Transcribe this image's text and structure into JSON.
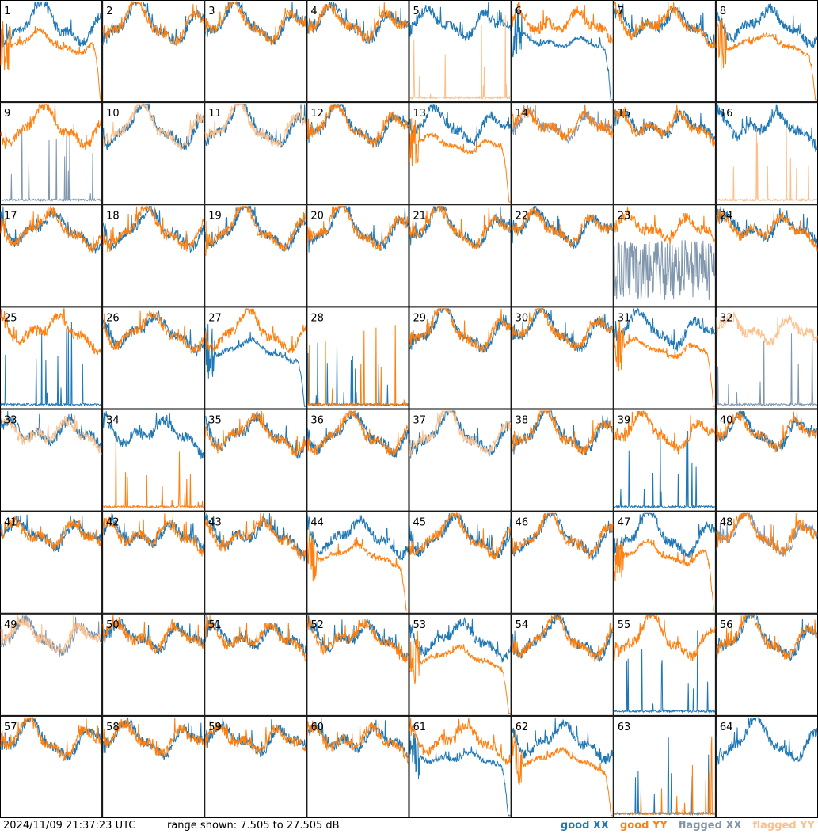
{
  "timestamp": "2024/11/09 21:37:23 UTC",
  "range_label": "range shown: 7.505 to 27.505 dB",
  "legend": [
    {
      "label": "good XX",
      "color": "#1f77b4"
    },
    {
      "label": "good YY",
      "color": "#ff7f0e"
    },
    {
      "label": "flagged XX",
      "color": "#7f96ad"
    },
    {
      "label": "flagged YY",
      "color": "#ffbf8a"
    }
  ],
  "chart_data": {
    "type": "line",
    "title": "",
    "xlabel": "",
    "ylabel": "",
    "ylim": [
      7.505,
      27.505
    ],
    "grid": {
      "rows": 8,
      "cols": 8
    },
    "panels": [
      {
        "n": 1,
        "xx": "good",
        "yy": "good",
        "yy_shape": "droop_end"
      },
      {
        "n": 2,
        "xx": "good",
        "yy": "good"
      },
      {
        "n": 3,
        "xx": "good",
        "yy": "good"
      },
      {
        "n": 4,
        "xx": "good",
        "yy": "good"
      },
      {
        "n": 5,
        "xx": "good",
        "yy": "flagged",
        "yy_shape": "spikes"
      },
      {
        "n": 6,
        "xx": "good",
        "yy": "good",
        "xx_shape": "droop_end"
      },
      {
        "n": 7,
        "xx": "good",
        "yy": "good"
      },
      {
        "n": 8,
        "xx": "good",
        "yy": "good",
        "yy_shape": "droop_end"
      },
      {
        "n": 9,
        "xx": "flagged",
        "yy": "good",
        "xx_shape": "spikes"
      },
      {
        "n": 10,
        "xx": "good",
        "yy": "flagged"
      },
      {
        "n": 11,
        "xx": "good",
        "yy": "flagged"
      },
      {
        "n": 12,
        "xx": "good",
        "yy": "good"
      },
      {
        "n": 13,
        "xx": "good",
        "yy": "good",
        "yy_shape": "droop_end"
      },
      {
        "n": 14,
        "xx": "flagged",
        "yy": "good"
      },
      {
        "n": 15,
        "xx": "good",
        "yy": "good"
      },
      {
        "n": 16,
        "xx": "good",
        "yy": "flagged",
        "yy_shape": "spikes"
      },
      {
        "n": 17,
        "xx": "good",
        "yy": "good"
      },
      {
        "n": 18,
        "xx": "good",
        "yy": "good"
      },
      {
        "n": 19,
        "xx": "good",
        "yy": "good"
      },
      {
        "n": 20,
        "xx": "good",
        "yy": "good"
      },
      {
        "n": 21,
        "xx": "good",
        "yy": "good"
      },
      {
        "n": 22,
        "xx": "good",
        "yy": "good"
      },
      {
        "n": 23,
        "xx": "flagged",
        "yy": "good",
        "xx_shape": "noise"
      },
      {
        "n": 24,
        "xx": "good",
        "yy": "good"
      },
      {
        "n": 25,
        "xx": "good",
        "yy": "good",
        "xx_shape": "spikes"
      },
      {
        "n": 26,
        "xx": "good",
        "yy": "good"
      },
      {
        "n": 27,
        "xx": "good",
        "yy": "good",
        "xx_shape": "droop_end"
      },
      {
        "n": 28,
        "xx": "good",
        "yy": "good",
        "xx_shape": "spikes",
        "yy_shape": "spikes"
      },
      {
        "n": 29,
        "xx": "good",
        "yy": "good"
      },
      {
        "n": 30,
        "xx": "good",
        "yy": "good"
      },
      {
        "n": 31,
        "xx": "good",
        "yy": "good",
        "yy_shape": "droop_end"
      },
      {
        "n": 32,
        "xx": "flagged",
        "yy": "flagged",
        "xx_shape": "spikes"
      },
      {
        "n": 33,
        "xx": "good",
        "yy": "flagged"
      },
      {
        "n": 34,
        "xx": "good",
        "yy": "good",
        "yy_shape": "spikes"
      },
      {
        "n": 35,
        "xx": "good",
        "yy": "good"
      },
      {
        "n": 36,
        "xx": "good",
        "yy": "good"
      },
      {
        "n": 37,
        "xx": "good",
        "yy": "flagged"
      },
      {
        "n": 38,
        "xx": "good",
        "yy": "good"
      },
      {
        "n": 39,
        "xx": "good",
        "yy": "good",
        "xx_shape": "spikes"
      },
      {
        "n": 40,
        "xx": "good",
        "yy": "good"
      },
      {
        "n": 41,
        "xx": "good",
        "yy": "good"
      },
      {
        "n": 42,
        "xx": "good",
        "yy": "good"
      },
      {
        "n": 43,
        "xx": "good",
        "yy": "good"
      },
      {
        "n": 44,
        "xx": "good",
        "yy": "good",
        "yy_shape": "droop_end"
      },
      {
        "n": 45,
        "xx": "good",
        "yy": "good"
      },
      {
        "n": 46,
        "xx": "good",
        "yy": "good"
      },
      {
        "n": 47,
        "xx": "good",
        "yy": "good",
        "yy_shape": "droop_end"
      },
      {
        "n": 48,
        "xx": "flagged",
        "yy": "good"
      },
      {
        "n": 49,
        "xx": "flagged",
        "yy": "flagged"
      },
      {
        "n": 50,
        "xx": "good",
        "yy": "good"
      },
      {
        "n": 51,
        "xx": "good",
        "yy": "good"
      },
      {
        "n": 52,
        "xx": "good",
        "yy": "good"
      },
      {
        "n": 53,
        "xx": "good",
        "yy": "good",
        "yy_shape": "droop_end"
      },
      {
        "n": 54,
        "xx": "good",
        "yy": "good"
      },
      {
        "n": 55,
        "xx": "good",
        "yy": "good",
        "xx_shape": "spikes"
      },
      {
        "n": 56,
        "xx": "good",
        "yy": "good"
      },
      {
        "n": 57,
        "xx": "good",
        "yy": "good"
      },
      {
        "n": 58,
        "xx": "good",
        "yy": "good"
      },
      {
        "n": 59,
        "xx": "good",
        "yy": "good"
      },
      {
        "n": 60,
        "xx": "good",
        "yy": "good"
      },
      {
        "n": 61,
        "xx": "good",
        "yy": "good",
        "xx_shape": "droop_end"
      },
      {
        "n": 62,
        "xx": "good",
        "yy": "good",
        "yy_shape": "droop_end"
      },
      {
        "n": 63,
        "xx": "good",
        "yy": "good",
        "xx_shape": "spikes",
        "yy_shape": "spikes"
      },
      {
        "n": 64,
        "xx": "good",
        "yy": "none"
      }
    ]
  }
}
